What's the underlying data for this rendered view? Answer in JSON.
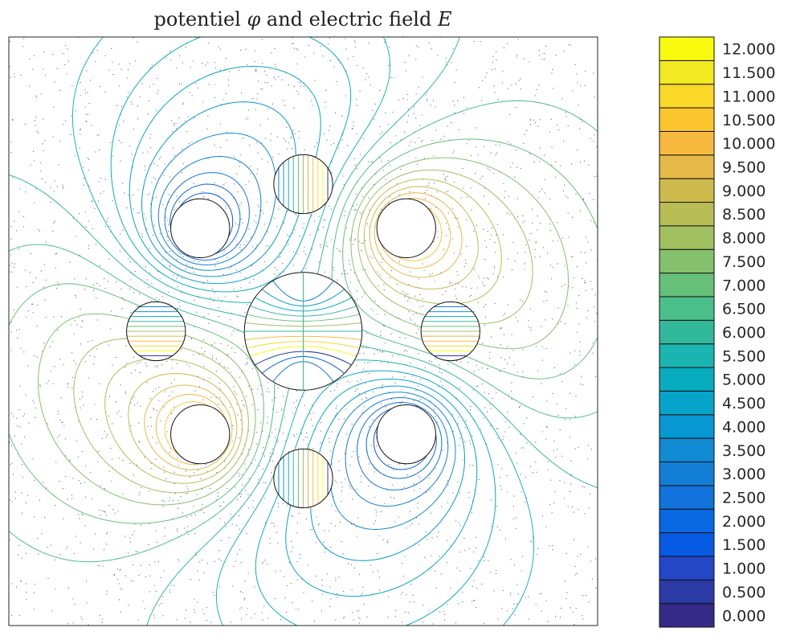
{
  "chart_data": {
    "type": "contour",
    "title": {
      "prefix": "potentiel ",
      "phi": "φ",
      "middle": " and electric field ",
      "E": "E"
    },
    "xlabel": "",
    "ylabel": "",
    "colorbar": {
      "levels": [
        "0.000",
        "0.500",
        "1.000",
        "1.500",
        "2.000",
        "2.500",
        "3.000",
        "3.500",
        "4.000",
        "4.500",
        "5.000",
        "5.500",
        "6.000",
        "6.500",
        "7.000",
        "7.500",
        "8.000",
        "8.500",
        "9.000",
        "9.500",
        "10.000",
        "10.500",
        "11.000",
        "11.500",
        "12.000"
      ],
      "colors": [
        "#352a87",
        "#2c3aa5",
        "#2347c6",
        "#075be2",
        "#0868e1",
        "#1173db",
        "#137ed6",
        "#0f8ad3",
        "#0797d2",
        "#06a4ca",
        "#08acc0",
        "#1ab5b0",
        "#32b99c",
        "#4bbf8a",
        "#67c07a",
        "#85c06c",
        "#a0bf5f",
        "#b8bd55",
        "#cdba4d",
        "#e4b948",
        "#f7ba3e",
        "#fdc62f",
        "#f9d827",
        "#f3e920",
        "#f9fb0e"
      ],
      "range": [
        0,
        12
      ]
    },
    "circles": [
      {
        "name": "center",
        "x": 0,
        "y": 0,
        "r": 1.0
      },
      {
        "name": "top",
        "x": 0,
        "y": 2.5,
        "r": 0.5
      },
      {
        "name": "bottom",
        "x": 0,
        "y": -2.5,
        "r": 0.5
      },
      {
        "name": "left",
        "x": -2.5,
        "y": 0,
        "r": 0.5
      },
      {
        "name": "right",
        "x": 2.5,
        "y": 0,
        "r": 0.5
      },
      {
        "name": "top-left",
        "x": -1.75,
        "y": 1.75,
        "r": 0.5
      },
      {
        "name": "top-right",
        "x": 1.75,
        "y": 1.75,
        "r": 0.5
      },
      {
        "name": "bottom-left",
        "x": -1.75,
        "y": -1.75,
        "r": 0.5
      },
      {
        "name": "bottom-right",
        "x": 1.75,
        "y": -1.75,
        "r": 0.5
      }
    ],
    "xlim": [
      -5,
      5
    ],
    "ylim": [
      -5,
      5
    ],
    "grid": false,
    "legend": "colorbar-right"
  }
}
